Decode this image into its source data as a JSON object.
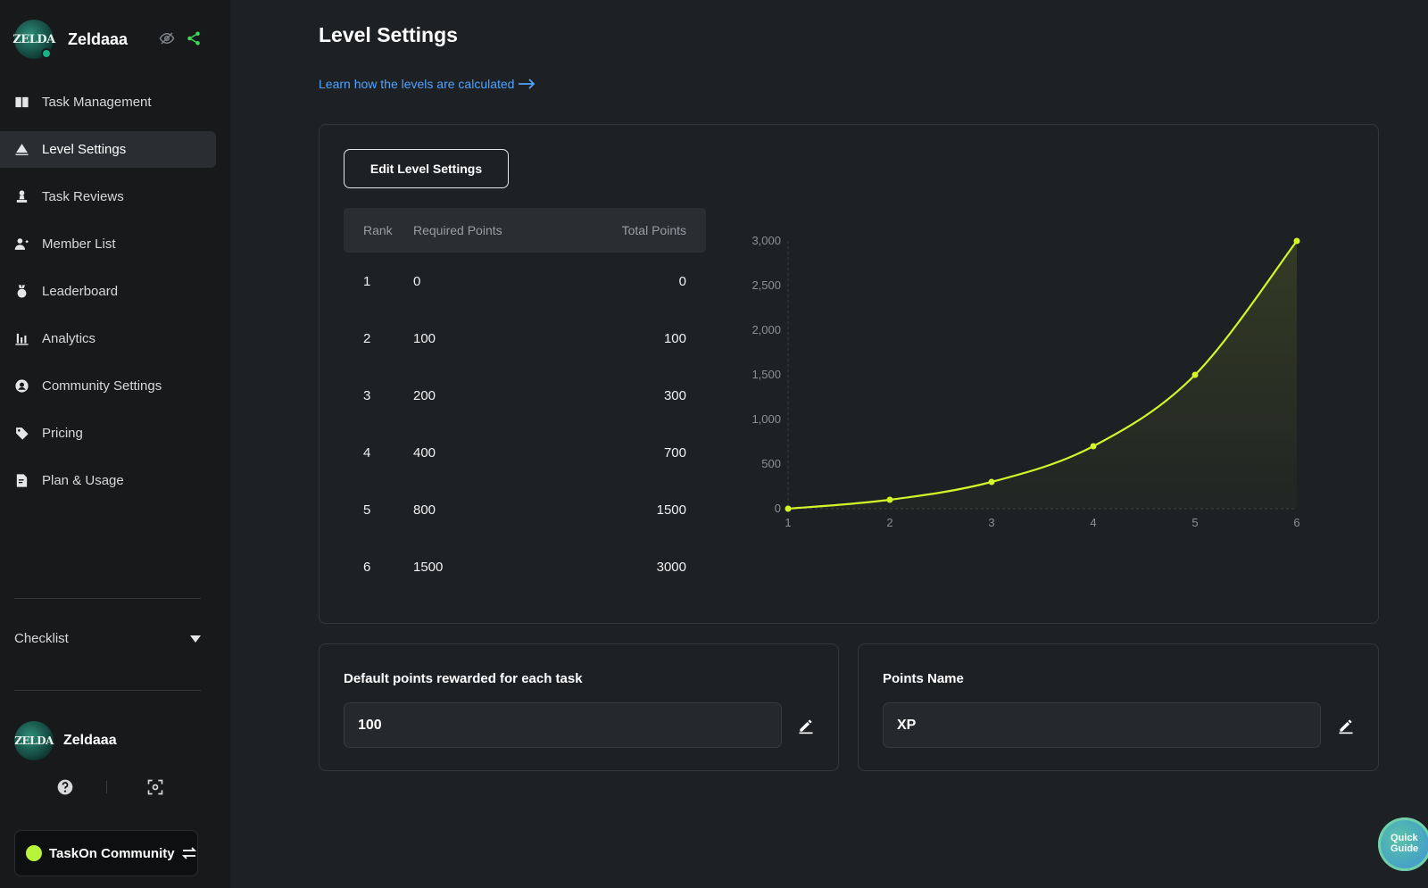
{
  "brand": {
    "name": "Zeldaaa",
    "avatar_text": "ZELDA"
  },
  "nav": {
    "items": [
      {
        "label": "Task Management",
        "icon": "book-icon"
      },
      {
        "label": "Level Settings",
        "icon": "level-icon"
      },
      {
        "label": "Task Reviews",
        "icon": "stamp-icon"
      },
      {
        "label": "Member List",
        "icon": "users-icon"
      },
      {
        "label": "Leaderboard",
        "icon": "medal-icon"
      },
      {
        "label": "Analytics",
        "icon": "bar-chart-icon"
      },
      {
        "label": "Community Settings",
        "icon": "user-circle-icon"
      },
      {
        "label": "Pricing",
        "icon": "tag-icon"
      },
      {
        "label": "Plan & Usage",
        "icon": "doc-edit-icon"
      }
    ],
    "active_index": 1
  },
  "checklist": {
    "label": "Checklist"
  },
  "user": {
    "name": "Zeldaaa",
    "avatar_text": "ZELDA"
  },
  "community": {
    "label": "TaskOn Community"
  },
  "page": {
    "title": "Level Settings",
    "learn_link": "Learn how the levels are calculated"
  },
  "levels": {
    "edit_button": "Edit Level Settings",
    "columns": [
      "Rank",
      "Required Points",
      "Total Points"
    ],
    "rows": [
      {
        "rank": "1",
        "required": "0",
        "total": "0"
      },
      {
        "rank": "2",
        "required": "100",
        "total": "100"
      },
      {
        "rank": "3",
        "required": "200",
        "total": "300"
      },
      {
        "rank": "4",
        "required": "400",
        "total": "700"
      },
      {
        "rank": "5",
        "required": "800",
        "total": "1500"
      },
      {
        "rank": "6",
        "required": "1500",
        "total": "3000"
      }
    ]
  },
  "chart_data": {
    "type": "area",
    "title": "",
    "xlabel": "",
    "ylabel": "",
    "x": [
      1,
      2,
      3,
      4,
      5,
      6
    ],
    "series": [
      {
        "values": [
          0,
          100,
          300,
          700,
          1500,
          3000
        ]
      }
    ],
    "y_ticks": [
      "0",
      "500",
      "1,000",
      "1,500",
      "2,000",
      "2,500",
      "3,000"
    ],
    "x_ticks": [
      "1",
      "2",
      "3",
      "4",
      "5",
      "6"
    ],
    "ylim": [
      0,
      3000
    ],
    "xlim": [
      1,
      6
    ],
    "color": "#d4f52a",
    "grid": false
  },
  "default_points": {
    "label": "Default points rewarded for each task",
    "value": "100"
  },
  "points_name": {
    "label": "Points Name",
    "value": "XP"
  },
  "quick_guide": {
    "line1": "Quick",
    "line2": "Guide"
  }
}
